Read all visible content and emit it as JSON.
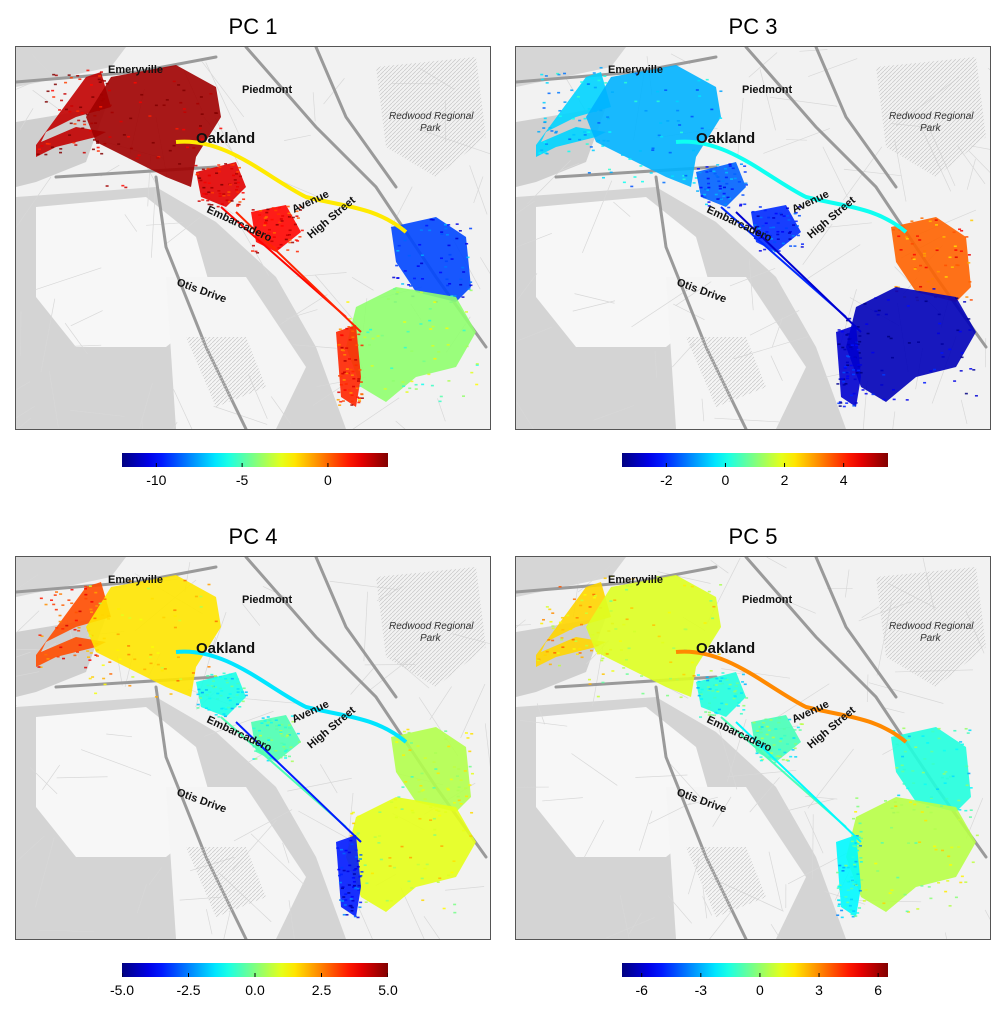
{
  "map": {
    "labels": {
      "piedmont": "Piedmont",
      "oakland": "Oakland",
      "redwood_line1": "Redwood Regional",
      "redwood_line2": "Park",
      "avenue": "Avenue",
      "high_street": "High Street",
      "embarcadero": "Embarcadero",
      "otis_drive": "Otis Drive",
      "emeryville": "Emeryville"
    }
  },
  "colormap": "jet",
  "panels": [
    {
      "title": "PC 1",
      "range": [
        -12,
        3.5
      ],
      "ticks": [
        "-10",
        "-5",
        "0"
      ],
      "tick_values": [
        -10,
        -5,
        0
      ],
      "region_values": {
        "west": 2.5,
        "downtown": 3.0,
        "chinatown": 2.0,
        "mid": 1.5,
        "freeway": -2.0,
        "east_north": -9.0,
        "east_south": -4.0,
        "south_strip": 1.0
      }
    },
    {
      "title": "PC 3",
      "range": [
        -3.5,
        5.5
      ],
      "ticks": [
        "-2",
        "0",
        "2",
        "4"
      ],
      "tick_values": [
        -2,
        0,
        2,
        4
      ],
      "region_values": {
        "west": -0.5,
        "downtown": -0.8,
        "chinatown": -1.5,
        "mid": -2.0,
        "freeway": 0.0,
        "east_north": 3.5,
        "east_south": -3.0,
        "south_strip": -2.8
      }
    },
    {
      "title": "PC 4",
      "range": [
        -5.0,
        5.0
      ],
      "ticks": [
        "-5.0",
        "-2.5",
        "0.0",
        "2.5",
        "5.0"
      ],
      "tick_values": [
        -5.0,
        -2.5,
        0.0,
        2.5,
        5.0
      ],
      "region_values": {
        "west": 3.0,
        "downtown": 1.5,
        "chinatown": -1.0,
        "mid": -0.5,
        "freeway": -1.5,
        "east_north": 0.5,
        "east_south": 1.0,
        "south_strip": -3.5
      }
    },
    {
      "title": "PC 5",
      "range": [
        -7,
        6.5
      ],
      "ticks": [
        "-6",
        "-3",
        "0",
        "3",
        "6"
      ],
      "tick_values": [
        -6,
        -3,
        0,
        3,
        6
      ],
      "region_values": {
        "west": 2.0,
        "downtown": 1.0,
        "chinatown": -1.5,
        "mid": -1.0,
        "freeway": 3.0,
        "east_north": -1.5,
        "east_south": 0.5,
        "south_strip": -2.0
      }
    }
  ]
}
